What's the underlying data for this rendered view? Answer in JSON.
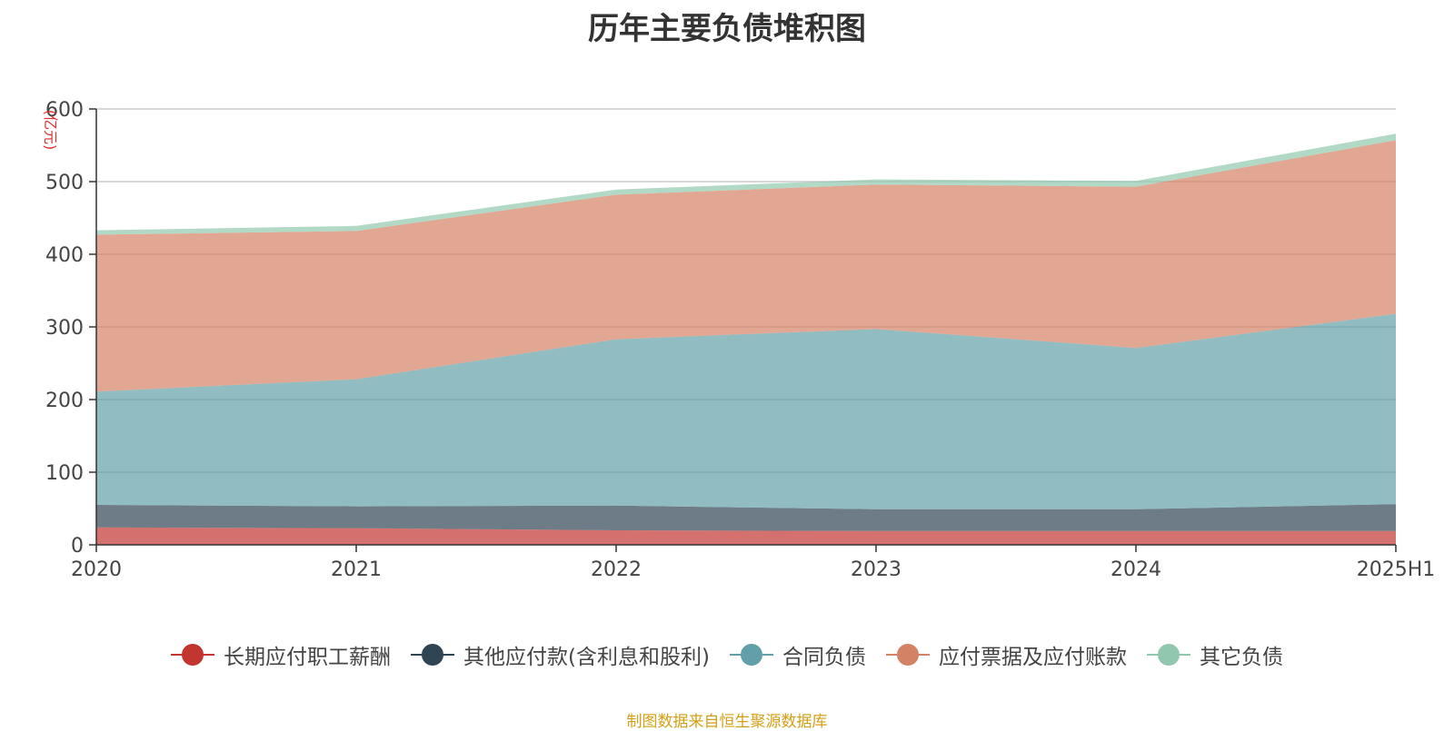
{
  "title": "历年主要负债堆积图",
  "source_note": "制图数据来自恒生聚源数据库",
  "colors": {
    "long_term_pay": "#c23531",
    "other_payables": "#2f4554",
    "contract_liab": "#61a0a8",
    "notes_accounts": "#d48265",
    "other_liab": "#91c7ae"
  },
  "chart_data": {
    "type": "area",
    "stacked": true,
    "unit": "(亿元)",
    "categories": [
      "2020",
      "2021",
      "2022",
      "2023",
      "2024",
      "2025H1"
    ],
    "ylim": [
      0,
      600
    ],
    "yticks": [
      0,
      100,
      200,
      300,
      400,
      500,
      600
    ],
    "grid": true,
    "legend_position": "bottom",
    "series": [
      {
        "name": "长期应付职工薪酬",
        "color": "#c23531",
        "values": [
          24,
          23,
          20,
          19,
          19,
          19
        ]
      },
      {
        "name": "其他应付款(含利息和股利)",
        "color": "#2f4554",
        "values": [
          31,
          30,
          34,
          30,
          30,
          37
        ]
      },
      {
        "name": "合同负债",
        "color": "#61a0a8",
        "values": [
          156,
          175,
          229,
          248,
          222,
          262
        ]
      },
      {
        "name": "应付票据及应付账款",
        "color": "#d48265",
        "values": [
          216,
          204,
          199,
          199,
          222,
          239
        ]
      },
      {
        "name": "其它负债",
        "color": "#91c7ae",
        "values": [
          6,
          7,
          7,
          7,
          8,
          9
        ]
      }
    ]
  }
}
